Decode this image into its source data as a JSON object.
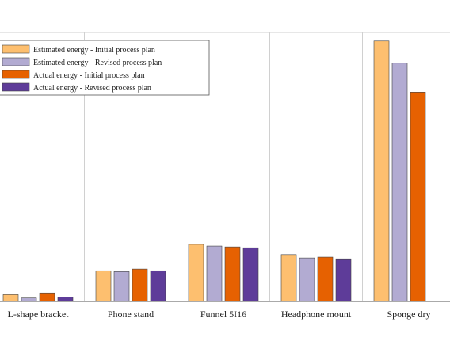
{
  "chart_data": {
    "type": "bar",
    "categories": [
      "L-shape bracket",
      "Phone stand",
      "Funnel 5I16",
      "Headphone mount",
      "Sponge dry"
    ],
    "series": [
      {
        "name": "Estimated energy - Initial process plan",
        "color": "#FDBF6F",
        "values": [
          8,
          36,
          67,
          55,
          306
        ]
      },
      {
        "name": "Estimated energy - Revised process plan",
        "color": "#B2ABD2",
        "values": [
          4,
          35,
          65,
          51,
          280
        ]
      },
      {
        "name": "Actual energy - Initial process plan",
        "color": "#E66101",
        "values": [
          10,
          38,
          64,
          52,
          246
        ]
      },
      {
        "name": "Actual energy - Revised process plan",
        "color": "#5E3C99",
        "values": [
          5,
          36,
          63,
          50,
          0
        ]
      }
    ],
    "ylim": [
      0,
      316
    ],
    "grid": "vertical-category-lines",
    "legend_position": "top-left"
  }
}
